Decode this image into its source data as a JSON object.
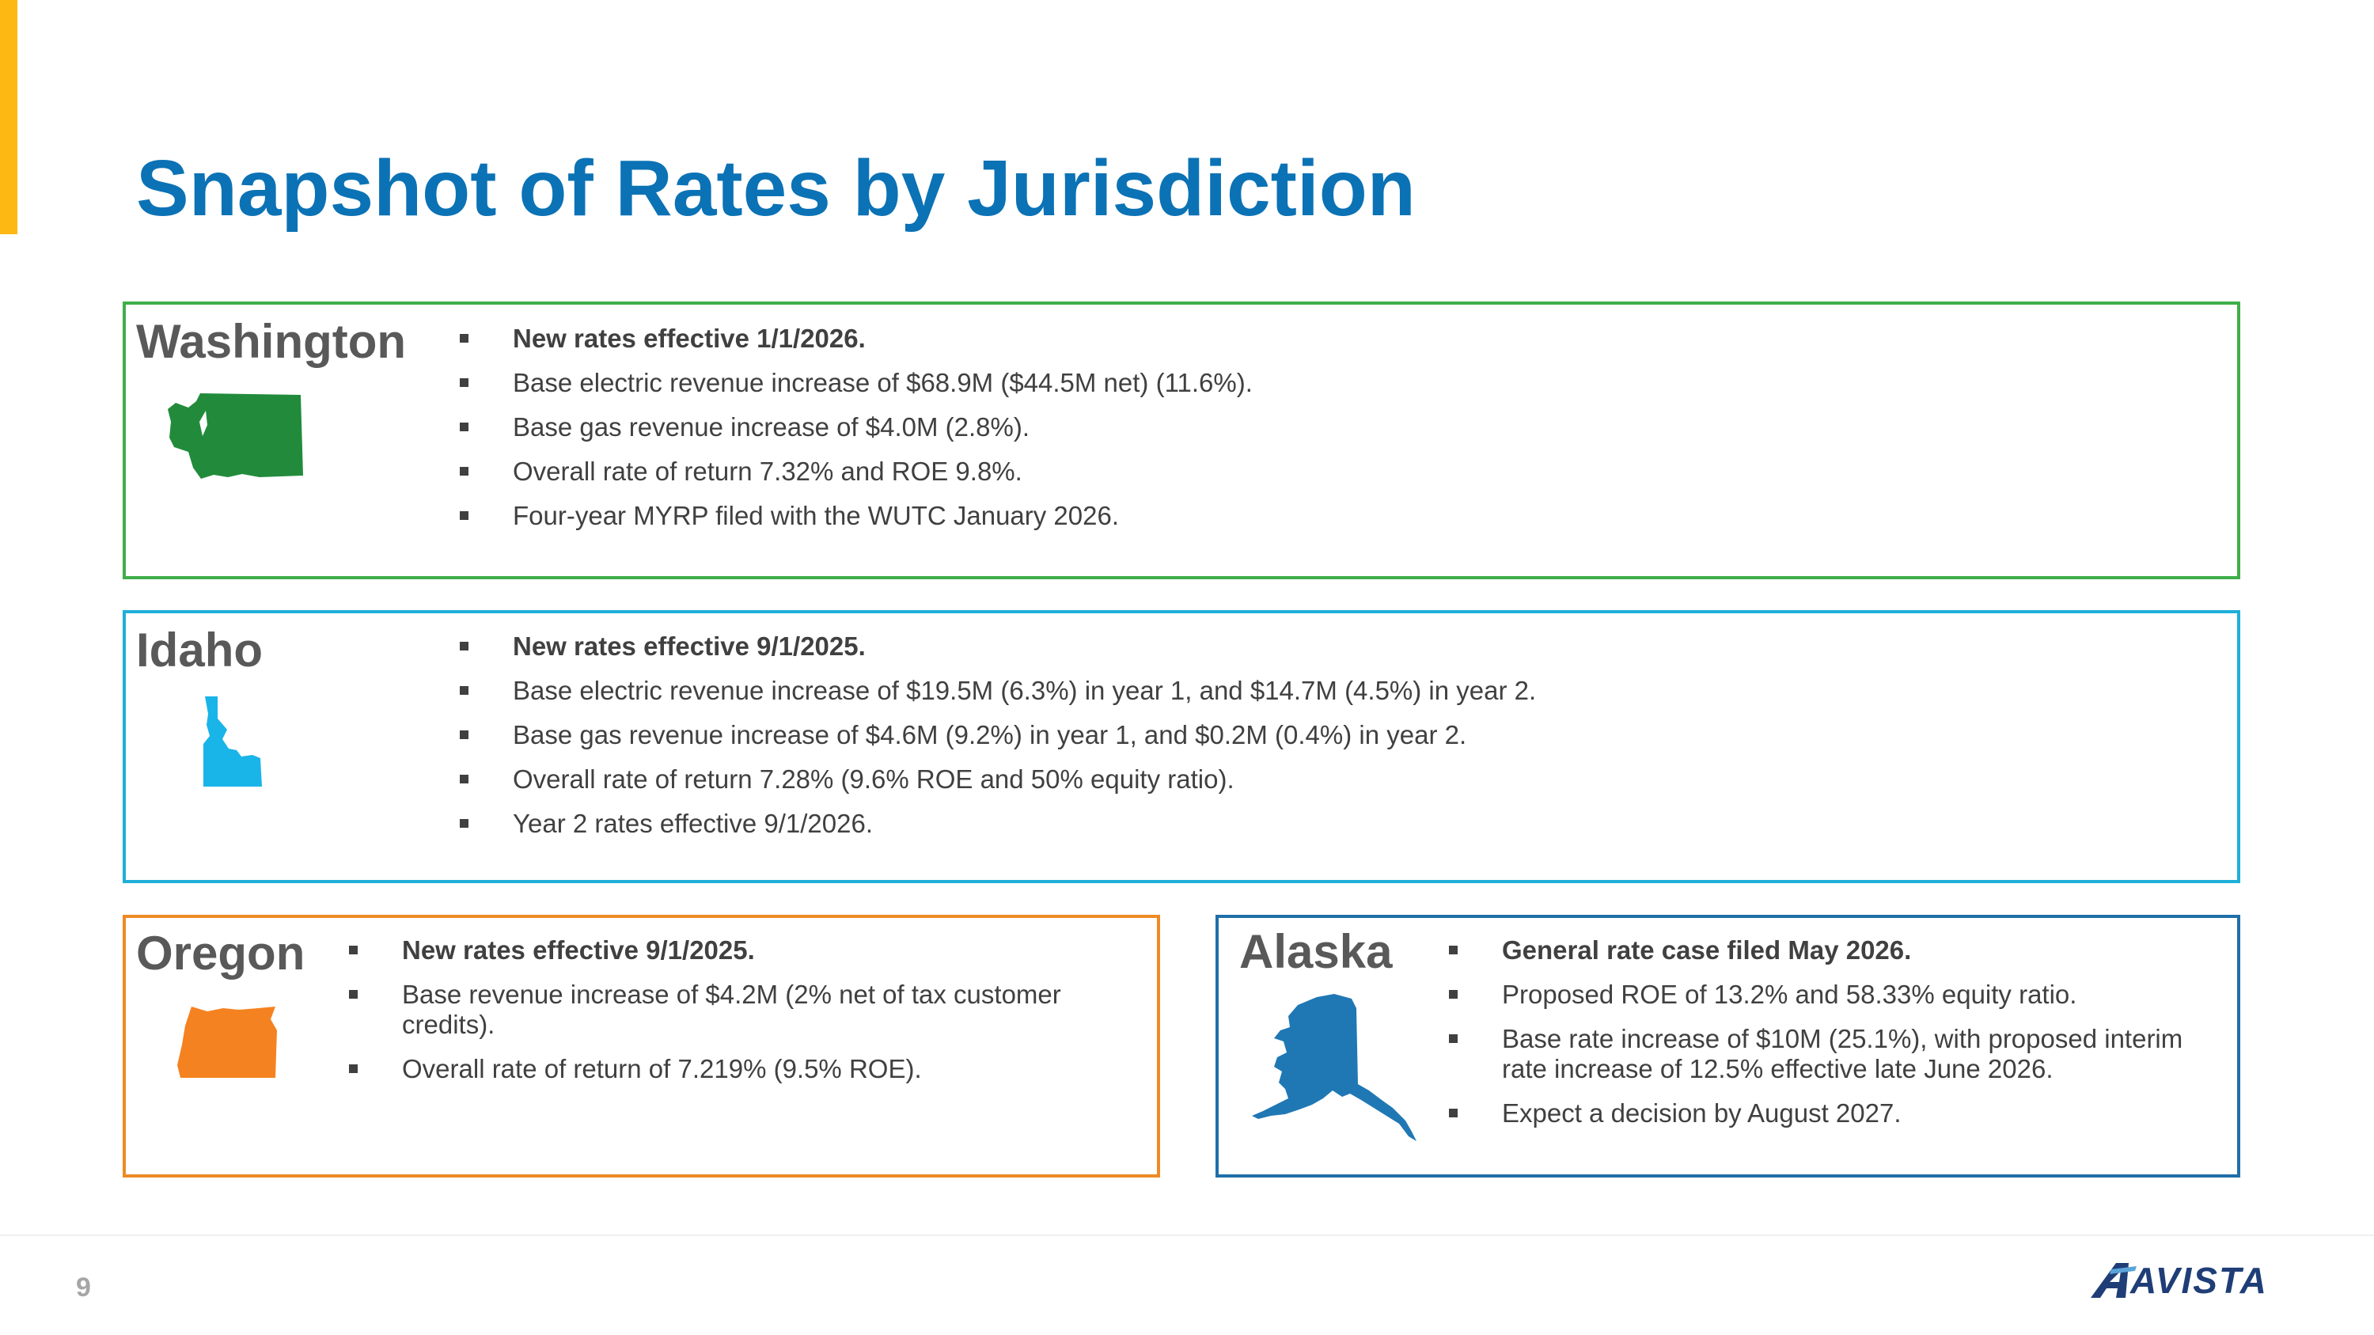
{
  "page": {
    "title": "Snapshot of Rates by Jurisdiction",
    "page_number": "9",
    "logo_text": "AVISTA",
    "colors": {
      "title": "#0B72B5",
      "accent_bar": "#FDB813",
      "washington": "#3FAE49",
      "idaho": "#1EAFD9",
      "oregon": "#EE8A25",
      "alaska": "#1F6FA8",
      "logo": "#1F3E77"
    }
  },
  "washington": {
    "name": "Washington",
    "icon": "washington-state-map-icon",
    "bullets": [
      "New rates effective 1/1/2026.",
      "Base electric revenue increase of $68.9M ($44.5M net) (11.6%).",
      "Base gas revenue increase of $4.0M (2.8%).",
      "Overall rate of return 7.32% and ROE 9.8%.",
      "Four-year MYRP filed with the WUTC January 2026."
    ]
  },
  "idaho": {
    "name": "Idaho",
    "icon": "idaho-state-map-icon",
    "bullets": [
      "New rates effective 9/1/2025.",
      "Base electric revenue increase of $19.5M (6.3%) in year 1, and $14.7M (4.5%) in year 2.",
      "Base gas revenue increase of $4.6M (9.2%) in year 1, and $0.2M (0.4%) in year 2.",
      "Overall rate of return 7.28% (9.6% ROE and 50% equity ratio).",
      "Year 2 rates effective 9/1/2026."
    ]
  },
  "oregon": {
    "name": "Oregon",
    "icon": "oregon-state-map-icon",
    "bullets": [
      "New rates effective 9/1/2025.",
      "Base revenue increase of $4.2M (2% net of tax customer credits).",
      "Overall rate of return of 7.219% (9.5% ROE)."
    ]
  },
  "alaska": {
    "name": "Alaska",
    "icon": "alaska-state-map-icon",
    "bullets": [
      "General rate case filed May 2026.",
      "Proposed ROE of 13.2% and 58.33% equity ratio.",
      "Base rate increase of $10M (25.1%), with proposed interim rate increase of 12.5% effective late June 2026.",
      "Expect a decision by August 2027."
    ]
  }
}
